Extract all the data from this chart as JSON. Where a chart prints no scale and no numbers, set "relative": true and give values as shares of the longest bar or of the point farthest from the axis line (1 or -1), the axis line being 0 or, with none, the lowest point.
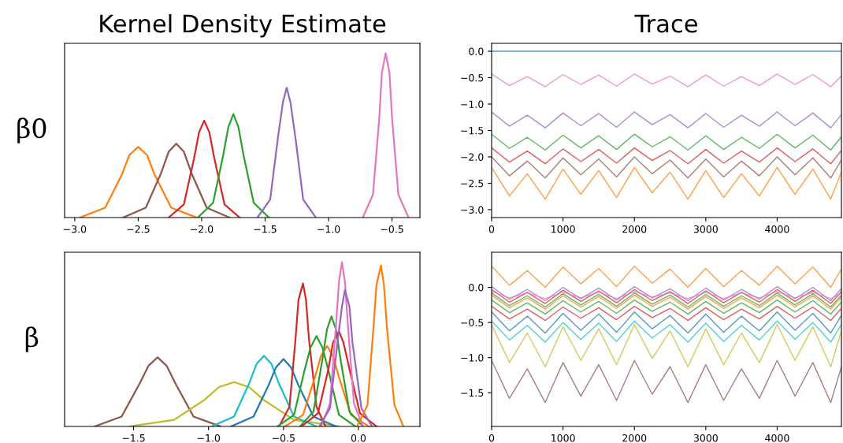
{
  "chart_data": [
    {
      "type": "line",
      "title": "Kernel Density Estimate",
      "ylabel": "β0",
      "relative": true,
      "tick_labels": "x",
      "grid": false,
      "xlim": [
        -3.08,
        -0.28
      ],
      "xticks": [
        {
          "value": -3.0,
          "label": "−3.0"
        },
        {
          "value": -2.5,
          "label": "−2.5"
        },
        {
          "value": -2.0,
          "label": "−2.0"
        },
        {
          "value": -1.5,
          "label": "−1.5"
        },
        {
          "value": -1.0,
          "label": "−1.0"
        },
        {
          "value": -0.5,
          "label": "−0.5"
        }
      ],
      "series": [
        {
          "color": "#ff7f0e",
          "x": [
            -2.96,
            -2.76,
            -2.63,
            -2.57,
            -2.5,
            -2.43,
            -2.37,
            -2.24,
            -2.04
          ],
          "values": [
            0,
            0.06,
            0.26,
            0.38,
            0.43,
            0.38,
            0.26,
            0.06,
            0
          ]
        },
        {
          "color": "#8c564b",
          "x": [
            -2.62,
            -2.44,
            -2.32,
            -2.26,
            -2.2,
            -2.14,
            -2.08,
            -1.96,
            -1.78
          ],
          "values": [
            0,
            0.06,
            0.27,
            0.4,
            0.45,
            0.4,
            0.27,
            0.06,
            0
          ]
        },
        {
          "color": "#d62728",
          "x": [
            -2.26,
            -2.14,
            -2.06,
            -2.02,
            -1.98,
            -1.94,
            -1.9,
            -1.82,
            -1.7
          ],
          "values": [
            0,
            0.08,
            0.36,
            0.52,
            0.59,
            0.52,
            0.36,
            0.08,
            0
          ]
        },
        {
          "color": "#2ca02c",
          "x": [
            -2.03,
            -1.91,
            -1.83,
            -1.79,
            -1.75,
            -1.71,
            -1.67,
            -1.59,
            -1.47
          ],
          "values": [
            0,
            0.09,
            0.38,
            0.55,
            0.63,
            0.55,
            0.38,
            0.09,
            0
          ]
        },
        {
          "color": "#9467bd",
          "x": [
            -1.56,
            -1.46,
            -1.4,
            -1.36,
            -1.33,
            -1.3,
            -1.26,
            -1.2,
            -1.1
          ],
          "values": [
            0,
            0.11,
            0.48,
            0.7,
            0.79,
            0.7,
            0.48,
            0.11,
            0
          ]
        },
        {
          "color": "#e377c2",
          "x": [
            -0.73,
            -0.65,
            -0.6,
            -0.58,
            -0.55,
            -0.52,
            -0.5,
            -0.45,
            -0.37
          ],
          "values": [
            0,
            0.14,
            0.61,
            0.88,
            1,
            0.88,
            0.61,
            0.14,
            0
          ]
        }
      ]
    },
    {
      "type": "line",
      "title": "Trace",
      "grid": false,
      "x": [
        0,
        250,
        500,
        750,
        1000,
        1250,
        1500,
        1750,
        2000,
        2250,
        2500,
        2750,
        3000,
        3250,
        3500,
        3750,
        4000,
        4250,
        4500,
        4750,
        4900
      ],
      "xlim": [
        0,
        4900
      ],
      "xticks": [
        0,
        1000,
        2000,
        3000,
        4000
      ],
      "ylim": [
        -3.15,
        0.15
      ],
      "yticks": [
        {
          "value": -3.0,
          "label": "−3.0"
        },
        {
          "value": -2.5,
          "label": "−2.5"
        },
        {
          "value": -2.0,
          "label": "−2.0"
        },
        {
          "value": -1.5,
          "label": "−1.5"
        },
        {
          "value": -1.0,
          "label": "−1.0"
        },
        {
          "value": -0.5,
          "label": "−0.5"
        },
        {
          "value": 0.0,
          "label": "0.0"
        }
      ],
      "series": [
        {
          "color": "#1f77b4",
          "values": [
            0,
            0,
            0,
            0,
            0,
            0,
            0,
            0,
            0,
            0,
            0,
            0,
            0,
            0,
            0,
            0,
            0,
            0,
            0,
            0,
            0
          ]
        },
        {
          "color": "#e377c2",
          "values": [
            -0.43,
            -0.65,
            -0.48,
            -0.67,
            -0.44,
            -0.63,
            -0.45,
            -0.66,
            -0.43,
            -0.62,
            -0.47,
            -0.67,
            -0.45,
            -0.66,
            -0.48,
            -0.65,
            -0.43,
            -0.63,
            -0.44,
            -0.67,
            -0.47
          ]
        },
        {
          "color": "#9467bd",
          "values": [
            -1.15,
            -1.42,
            -1.21,
            -1.45,
            -1.17,
            -1.41,
            -1.18,
            -1.44,
            -1.15,
            -1.39,
            -1.2,
            -1.45,
            -1.18,
            -1.44,
            -1.21,
            -1.42,
            -1.15,
            -1.41,
            -1.17,
            -1.45,
            -1.2
          ]
        },
        {
          "color": "#2ca02c",
          "values": [
            -1.57,
            -1.84,
            -1.63,
            -1.87,
            -1.59,
            -1.83,
            -1.6,
            -1.86,
            -1.57,
            -1.81,
            -1.62,
            -1.87,
            -1.6,
            -1.86,
            -1.63,
            -1.84,
            -1.57,
            -1.83,
            -1.59,
            -1.87,
            -1.62
          ]
        },
        {
          "color": "#d62728",
          "values": [
            -1.83,
            -2.1,
            -1.89,
            -2.13,
            -1.85,
            -2.09,
            -1.86,
            -2.12,
            -1.83,
            -2.07,
            -1.88,
            -2.13,
            -1.86,
            -2.12,
            -1.89,
            -2.1,
            -1.83,
            -2.09,
            -1.85,
            -2.13,
            -1.88
          ]
        },
        {
          "color": "#8c564b",
          "values": [
            -2.0,
            -2.36,
            -2.08,
            -2.4,
            -2.02,
            -2.34,
            -2.04,
            -2.38,
            -2.0,
            -2.32,
            -2.06,
            -2.4,
            -2.04,
            -2.38,
            -2.08,
            -2.36,
            -2.0,
            -2.34,
            -2.02,
            -2.4,
            -2.06
          ]
        },
        {
          "color": "#ff7f0e",
          "values": [
            -2.2,
            -2.74,
            -2.32,
            -2.8,
            -2.23,
            -2.71,
            -2.26,
            -2.77,
            -2.2,
            -2.68,
            -2.29,
            -2.8,
            -2.26,
            -2.77,
            -2.32,
            -2.74,
            -2.2,
            -2.71,
            -2.23,
            -2.8,
            -2.29
          ]
        }
      ]
    },
    {
      "type": "line",
      "ylabel": "β",
      "relative": true,
      "tick_labels": "x",
      "grid": false,
      "xlim": [
        -1.96,
        0.41
      ],
      "xticks": [
        {
          "value": -1.5,
          "label": "−1.5"
        },
        {
          "value": -1.0,
          "label": "−1.0"
        },
        {
          "value": -0.5,
          "label": "−0.5"
        },
        {
          "value": 0.0,
          "label": "0.0"
        }
      ],
      "series": [
        {
          "color": "#8c564b",
          "x": [
            -1.76,
            -1.58,
            -1.46,
            -1.4,
            -1.34,
            -1.28,
            -1.22,
            -1.1,
            -0.92
          ],
          "values": [
            0,
            0.06,
            0.26,
            0.37,
            0.42,
            0.37,
            0.26,
            0.06,
            0
          ]
        },
        {
          "color": "#bcbd22",
          "x": [
            -1.53,
            -1.23,
            -1.03,
            -0.93,
            -0.83,
            -0.73,
            -0.63,
            -0.43,
            -0.13
          ],
          "values": [
            0,
            0.04,
            0.16,
            0.24,
            0.27,
            0.24,
            0.16,
            0.04,
            0
          ]
        },
        {
          "color": "#17becf",
          "x": [
            -0.98,
            -0.83,
            -0.73,
            -0.68,
            -0.63,
            -0.58,
            -0.53,
            -0.43,
            -0.28
          ],
          "values": [
            0,
            0.06,
            0.26,
            0.38,
            0.43,
            0.38,
            0.26,
            0.06,
            0
          ]
        },
        {
          "color": "#1f77b4",
          "x": [
            -0.85,
            -0.7,
            -0.6,
            -0.55,
            -0.5,
            -0.45,
            -0.4,
            -0.3,
            -0.15
          ],
          "values": [
            0,
            0.06,
            0.25,
            0.36,
            0.41,
            0.36,
            0.25,
            0.06,
            0
          ]
        },
        {
          "color": "#d62728",
          "x": [
            -0.53,
            -0.46,
            -0.42,
            -0.4,
            -0.37,
            -0.35,
            -0.33,
            -0.28,
            -0.22
          ],
          "values": [
            0,
            0.12,
            0.53,
            0.77,
            0.87,
            0.77,
            0.53,
            0.12,
            0
          ]
        },
        {
          "color": "#2ca02c",
          "x": [
            -0.54,
            -0.43,
            -0.36,
            -0.32,
            -0.28,
            -0.24,
            -0.2,
            -0.13,
            -0.02
          ],
          "values": [
            0,
            0.07,
            0.34,
            0.48,
            0.55,
            0.48,
            0.34,
            0.07,
            0
          ]
        },
        {
          "color": "#ff7f0e",
          "x": [
            -0.49,
            -0.37,
            -0.29,
            -0.25,
            -0.21,
            -0.17,
            -0.13,
            -0.05,
            0.07
          ],
          "values": [
            0,
            0.07,
            0.3,
            0.43,
            0.49,
            0.43,
            0.3,
            0.07,
            0
          ]
        },
        {
          "color": "#2ca02c",
          "x": [
            -0.39,
            -0.3,
            -0.24,
            -0.21,
            -0.18,
            -0.15,
            -0.12,
            -0.06,
            0.03
          ],
          "values": [
            0,
            0.09,
            0.41,
            0.59,
            0.67,
            0.59,
            0.41,
            0.09,
            0
          ]
        },
        {
          "color": "#d62728",
          "x": [
            -0.38,
            -0.27,
            -0.2,
            -0.17,
            -0.13,
            -0.1,
            -0.06,
            0.01,
            0.12
          ],
          "values": [
            0,
            0.08,
            0.35,
            0.51,
            0.58,
            0.51,
            0.35,
            0.08,
            0
          ]
        },
        {
          "color": "#e377c2",
          "x": [
            -0.25,
            -0.19,
            -0.15,
            -0.13,
            -0.11,
            -0.09,
            -0.07,
            -0.03,
            0.03
          ],
          "values": [
            0,
            0.14,
            0.61,
            0.88,
            1,
            0.88,
            0.61,
            0.14,
            0
          ]
        },
        {
          "color": "#9467bd",
          "x": [
            -0.26,
            -0.19,
            -0.14,
            -0.11,
            -0.09,
            -0.06,
            -0.04,
            0.02,
            0.09
          ],
          "values": [
            0,
            0.11,
            0.51,
            0.73,
            0.83,
            0.73,
            0.51,
            0.11,
            0
          ]
        },
        {
          "color": "#ff7f0e",
          "x": [
            -0.01,
            0.06,
            0.1,
            0.12,
            0.15,
            0.17,
            0.19,
            0.24,
            0.3
          ],
          "values": [
            0,
            0.13,
            0.6,
            0.86,
            0.98,
            0.86,
            0.6,
            0.13,
            0
          ]
        }
      ]
    },
    {
      "type": "line",
      "grid": false,
      "x": [
        0,
        250,
        500,
        750,
        1000,
        1250,
        1500,
        1750,
        2000,
        2250,
        2500,
        2750,
        3000,
        3250,
        3500,
        3750,
        4000,
        4250,
        4500,
        4750,
        4900
      ],
      "xlim": [
        0,
        4900
      ],
      "xticks": [
        0,
        1000,
        2000,
        3000,
        4000
      ],
      "ylim": [
        -1.98,
        0.5
      ],
      "yticks": [
        {
          "value": -1.5,
          "label": "−1.5"
        },
        {
          "value": -1.0,
          "label": "−1.0"
        },
        {
          "value": -0.5,
          "label": "−0.5"
        },
        {
          "value": 0.0,
          "label": "0.0"
        }
      ],
      "series": [
        {
          "color": "#8c564b",
          "values": [
            -1.04,
            -1.58,
            -1.16,
            -1.64,
            -1.07,
            -1.55,
            -1.1,
            -1.61,
            -1.04,
            -1.52,
            -1.13,
            -1.64,
            -1.1,
            -1.61,
            -1.16,
            -1.58,
            -1.04,
            -1.55,
            -1.07,
            -1.64,
            -1.13
          ]
        },
        {
          "color": "#bcbd22",
          "values": [
            -0.53,
            -1.07,
            -0.65,
            -1.13,
            -0.56,
            -1.04,
            -0.59,
            -1.1,
            -0.53,
            -1.01,
            -0.62,
            -1.13,
            -0.59,
            -1.1,
            -0.65,
            -1.07,
            -0.53,
            -1.04,
            -0.56,
            -1.13,
            -0.62
          ]
        },
        {
          "color": "#17becf",
          "values": [
            -0.48,
            -0.75,
            -0.54,
            -0.78,
            -0.5,
            -0.74,
            -0.51,
            -0.77,
            -0.48,
            -0.72,
            -0.53,
            -0.78,
            -0.51,
            -0.77,
            -0.54,
            -0.75,
            -0.48,
            -0.74,
            -0.5,
            -0.78,
            -0.53
          ]
        },
        {
          "color": "#1f77b4",
          "values": [
            -0.35,
            -0.62,
            -0.41,
            -0.65,
            -0.37,
            -0.61,
            -0.38,
            -0.64,
            -0.35,
            -0.59,
            -0.4,
            -0.65,
            -0.38,
            -0.64,
            -0.41,
            -0.62,
            -0.35,
            -0.61,
            -0.37,
            -0.65,
            -0.4
          ]
        },
        {
          "color": "#d62728",
          "values": [
            -0.27,
            -0.45,
            -0.31,
            -0.47,
            -0.28,
            -0.44,
            -0.29,
            -0.46,
            -0.27,
            -0.43,
            -0.3,
            -0.47,
            -0.29,
            -0.46,
            -0.31,
            -0.45,
            -0.27,
            -0.44,
            -0.28,
            -0.47,
            -0.3
          ]
        },
        {
          "color": "#2ca02c",
          "values": [
            -0.18,
            -0.36,
            -0.22,
            -0.38,
            -0.19,
            -0.35,
            -0.2,
            -0.37,
            -0.18,
            -0.34,
            -0.21,
            -0.38,
            -0.2,
            -0.37,
            -0.22,
            -0.36,
            -0.18,
            -0.35,
            -0.19,
            -0.38,
            -0.21
          ]
        },
        {
          "color": "#ff7f0e",
          "values": [
            -0.11,
            -0.29,
            -0.15,
            -0.31,
            -0.12,
            -0.28,
            -0.13,
            -0.3,
            -0.11,
            -0.27,
            -0.14,
            -0.31,
            -0.13,
            -0.3,
            -0.15,
            -0.29,
            -0.11,
            -0.28,
            -0.12,
            -0.31,
            -0.14
          ]
        },
        {
          "color": "#2ca02c",
          "values": [
            -0.08,
            -0.26,
            -0.12,
            -0.28,
            -0.09,
            -0.25,
            -0.1,
            -0.27,
            -0.08,
            -0.24,
            -0.11,
            -0.28,
            -0.1,
            -0.27,
            -0.12,
            -0.26,
            -0.08,
            -0.25,
            -0.09,
            -0.28,
            -0.11
          ]
        },
        {
          "color": "#d62728",
          "values": [
            -0.03,
            -0.21,
            -0.07,
            -0.23,
            -0.04,
            -0.2,
            -0.05,
            -0.22,
            -0.03,
            -0.19,
            -0.06,
            -0.23,
            -0.05,
            -0.22,
            -0.07,
            -0.21,
            -0.03,
            -0.2,
            -0.04,
            -0.23,
            -0.06
          ]
        },
        {
          "color": "#9467bd",
          "values": [
            0.01,
            -0.17,
            -0.03,
            -0.19,
            0,
            -0.16,
            -0.01,
            -0.18,
            0.01,
            -0.15,
            -0.02,
            -0.19,
            -0.01,
            -0.18,
            -0.03,
            -0.17,
            0.01,
            -0.16,
            0,
            -0.19,
            -0.02
          ]
        },
        {
          "color": "#e377c2",
          "values": [
            -0.06,
            -0.15,
            -0.08,
            -0.16,
            -0.07,
            -0.15,
            -0.07,
            -0.16,
            -0.06,
            -0.14,
            -0.08,
            -0.16,
            -0.07,
            -0.16,
            -0.08,
            -0.15,
            -0.06,
            -0.15,
            -0.07,
            -0.16,
            -0.08
          ]
        },
        {
          "color": "#ff7f0e",
          "values": [
            0.3,
            0.03,
            0.24,
            0,
            0.29,
            0.05,
            0.27,
            0.01,
            0.3,
            0.06,
            0.26,
            0,
            0.27,
            0.01,
            0.24,
            0.03,
            0.3,
            0.05,
            0.29,
            0,
            0.26
          ]
        }
      ]
    }
  ]
}
